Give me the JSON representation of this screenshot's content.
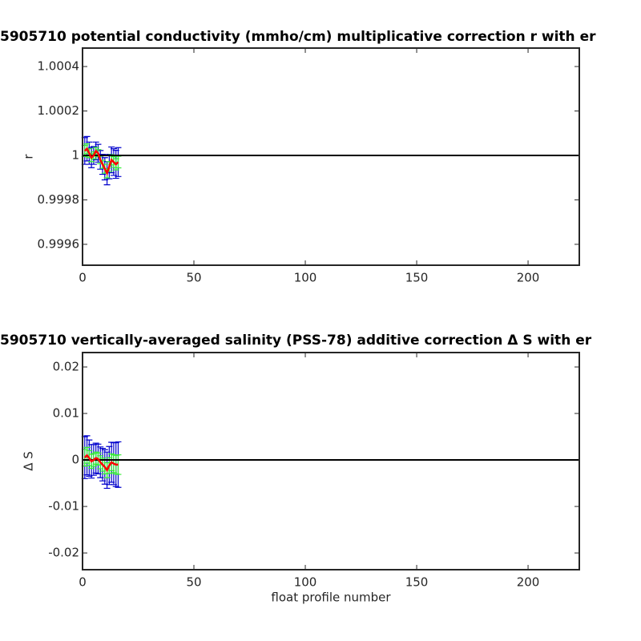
{
  "chart_data": [
    {
      "type": "line",
      "title": "5905710 potential conductivity (mmho/cm) multiplicative correction r with er",
      "y_label": "r",
      "x": [
        1,
        2,
        3,
        4,
        5,
        6,
        7,
        8,
        9,
        10,
        11,
        12,
        13,
        14,
        15,
        16
      ],
      "values": [
        1.00002,
        1.00003,
        1.00001,
        0.99999,
        1.0,
        1.00002,
        1.00001,
        0.99998,
        0.99996,
        0.99994,
        0.99992,
        0.99995,
        0.99998,
        0.99997,
        0.99996,
        0.99997
      ],
      "color": "#ff0000",
      "error_bars": [
        {
          "color": "#0000cc",
          "errors": [
            6e-05,
            5.5e-05,
            5e-05,
            4.5e-05,
            4e-05,
            4e-05,
            4e-05,
            4.2e-05,
            4.5e-05,
            5e-05,
            5.2e-05,
            5.5e-05,
            5.8e-05,
            6e-05,
            6.3e-05,
            6.5e-05
          ]
        },
        {
          "color": "#33ee33",
          "errors": [
            2.5e-05,
            2.2e-05,
            2e-05,
            1.8e-05,
            1.6e-05,
            1.6e-05,
            1.6e-05,
            1.7e-05,
            1.8e-05,
            2e-05,
            2.1e-05,
            2.2e-05,
            2.3e-05,
            2.4e-05,
            2.5e-05,
            2.6e-05
          ]
        }
      ],
      "reference_line": 1,
      "xlim": [
        0,
        223
      ],
      "xticks": [
        0,
        50,
        100,
        150,
        200
      ],
      "ylim": [
        0.999506,
        1.000483
      ],
      "yticks": [
        0.9996,
        0.9998,
        1,
        1.0002,
        1.0004
      ]
    },
    {
      "type": "line",
      "title": "5905710 vertically-averaged salinity (PSS-78) additive correction Δ S with er",
      "y_label": "Δ S",
      "x_label": "float profile number",
      "x": [
        1,
        2,
        3,
        4,
        5,
        6,
        7,
        8,
        9,
        10,
        11,
        12,
        13,
        14,
        15,
        16
      ],
      "values": [
        0.0005,
        0.001,
        0.0004,
        -0.0003,
        0,
        0.0004,
        0.0002,
        -0.0005,
        -0.001,
        -0.0015,
        -0.0022,
        -0.0012,
        -0.0005,
        -0.0008,
        -0.001,
        -0.001
      ],
      "color": "#ff0000",
      "error_bars": [
        {
          "color": "#0000cc",
          "errors": [
            0.0045,
            0.0042,
            0.0039,
            0.0036,
            0.0033,
            0.0032,
            0.0032,
            0.0033,
            0.0035,
            0.0037,
            0.0039,
            0.0041,
            0.0043,
            0.0045,
            0.0047,
            0.0049
          ]
        },
        {
          "color": "#33ee33",
          "errors": [
            0.0018,
            0.0017,
            0.0016,
            0.0015,
            0.0014,
            0.0013,
            0.0013,
            0.0014,
            0.0014,
            0.0015,
            0.0016,
            0.0017,
            0.0018,
            0.0019,
            0.002,
            0.0021
          ]
        }
      ],
      "reference_line": 0,
      "xlim": [
        0,
        223
      ],
      "xticks": [
        0,
        50,
        100,
        150,
        200
      ],
      "ylim": [
        -0.0236,
        0.0231
      ],
      "yticks": [
        -0.02,
        -0.01,
        0,
        0.01,
        0.02
      ]
    }
  ]
}
